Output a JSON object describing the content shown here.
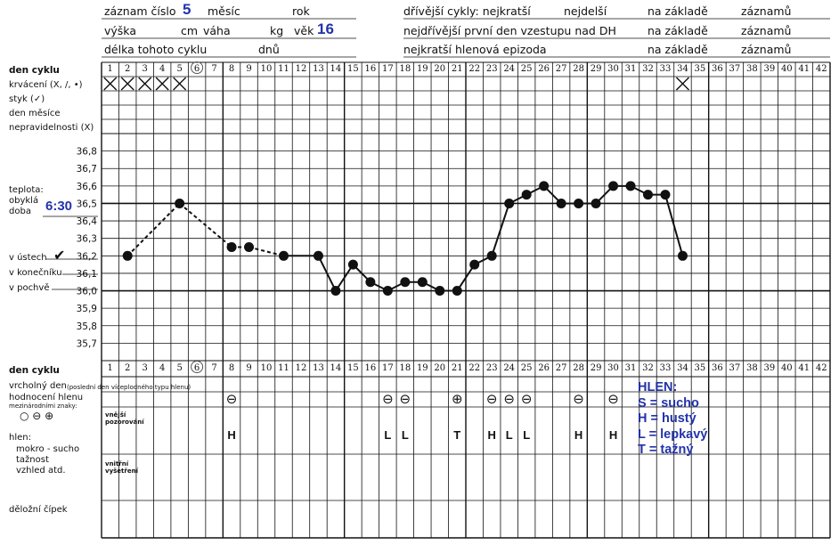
{
  "header": {
    "record_label": "záznam číslo",
    "record_value": "5",
    "month_label": "měsíc",
    "year_label": "rok",
    "height_label": "výška",
    "height_unit": "cm",
    "weight_label": "váha",
    "weight_unit": "kg",
    "age_label": "věk",
    "age_value": "16",
    "cycle_length_label": "délka tohoto cyklu",
    "cycle_length_unit": "dnů",
    "prev_cycles_label": "dřívější cykly: nejkratší",
    "longest_label": "nejdelší",
    "based_on_label": "na základě",
    "records_label": "záznamů",
    "earliest_label": "nejdřívější první den vzestupu nad DH",
    "shortest_mucus_label": "nejkratší hlenová epizoda"
  },
  "left_labels": {
    "cycle_day": "den cyklu",
    "bleeding": "krvácení (X, /, •)",
    "intercourse": "styk (✓)",
    "month_day": "den měsíce",
    "irregularities": "nepravidelnosti (X)",
    "temperature": "teplota:",
    "usual": "obyklá",
    "time_label": "doba",
    "time_value": "6:30",
    "mouth": "v ústech",
    "mouth_mark": "✔",
    "rectum": "v konečníku",
    "vagina": "v pochvě",
    "cycle_day_bottom": "den cyklu",
    "peak_day": "vrcholný den",
    "peak_day_note": "(poslední den víceplodného typu hlenu)",
    "mucus_eval": "hodnocení hlenu",
    "mucus_eval_note": "mezinárodními znaky:",
    "symbols": "○ ⊖ ⊕",
    "mucus": "hlen:",
    "mucus_1": "mokro - sucho",
    "mucus_2": "tažnost",
    "mucus_3": "vzhled atd.",
    "external": "vnější pozorování",
    "internal": "vnitřní vyšetření",
    "cervix": "děložní čípek"
  },
  "legend": {
    "title": "HLEN:",
    "s": "S = sucho",
    "h": "H = hustý",
    "l": "L = lepkavý",
    "t": "T = tažný"
  },
  "chart_data": {
    "type": "line",
    "title": "",
    "xlabel": "den cyklu",
    "ylabel": "teplota",
    "days": [
      1,
      2,
      3,
      4,
      5,
      6,
      7,
      8,
      9,
      10,
      11,
      12,
      13,
      14,
      15,
      16,
      17,
      18,
      19,
      20,
      21,
      22,
      23,
      24,
      25,
      26,
      27,
      28,
      29,
      30,
      31,
      32,
      33,
      34,
      35,
      36,
      37,
      38,
      39,
      40,
      41,
      42
    ],
    "circled_day": 6,
    "ylim": [
      35.6,
      36.9
    ],
    "yticks": [
      "36,8",
      "36,7",
      "36,6",
      "36,5",
      "36,4",
      "36,3",
      "36,2",
      "36,1",
      "36,0",
      "35,9",
      "35,8",
      "35,7"
    ],
    "series": [
      {
        "x": [
          2,
          5,
          8,
          9,
          11,
          13,
          14,
          15,
          16,
          17,
          18,
          19,
          20,
          21,
          22,
          23,
          24,
          25,
          26,
          27,
          28,
          29,
          30,
          31,
          32,
          33,
          34
        ],
        "y": [
          36.2,
          36.5,
          36.25,
          36.25,
          36.2,
          36.2,
          36.0,
          36.15,
          36.05,
          36.0,
          36.05,
          36.05,
          36.0,
          36.0,
          36.15,
          36.2,
          36.5,
          36.55,
          36.6,
          36.5,
          36.5,
          36.5,
          36.6,
          36.6,
          36.55,
          36.55,
          36.2
        ],
        "dashed_until_day": 11
      }
    ],
    "bleeding_x_days": [
      1,
      2,
      3,
      4,
      5,
      34
    ],
    "mucus_eval": [
      {
        "day": 8,
        "symbol": "⊖"
      },
      {
        "day": 17,
        "symbol": "⊖"
      },
      {
        "day": 18,
        "symbol": "⊖"
      },
      {
        "day": 21,
        "symbol": "⊕"
      },
      {
        "day": 23,
        "symbol": "⊖"
      },
      {
        "day": 24,
        "symbol": "⊖"
      },
      {
        "day": 25,
        "symbol": "⊖"
      },
      {
        "day": 28,
        "symbol": "⊖"
      },
      {
        "day": 30,
        "symbol": "⊖"
      }
    ],
    "mucus_type": [
      {
        "day": 8,
        "code": "H"
      },
      {
        "day": 17,
        "code": "L"
      },
      {
        "day": 18,
        "code": "L"
      },
      {
        "day": 21,
        "code": "T"
      },
      {
        "day": 23,
        "code": "H"
      },
      {
        "day": 24,
        "code": "L"
      },
      {
        "day": 25,
        "code": "L"
      },
      {
        "day": 28,
        "code": "H"
      },
      {
        "day": 30,
        "code": "H"
      }
    ],
    "grid": true
  }
}
